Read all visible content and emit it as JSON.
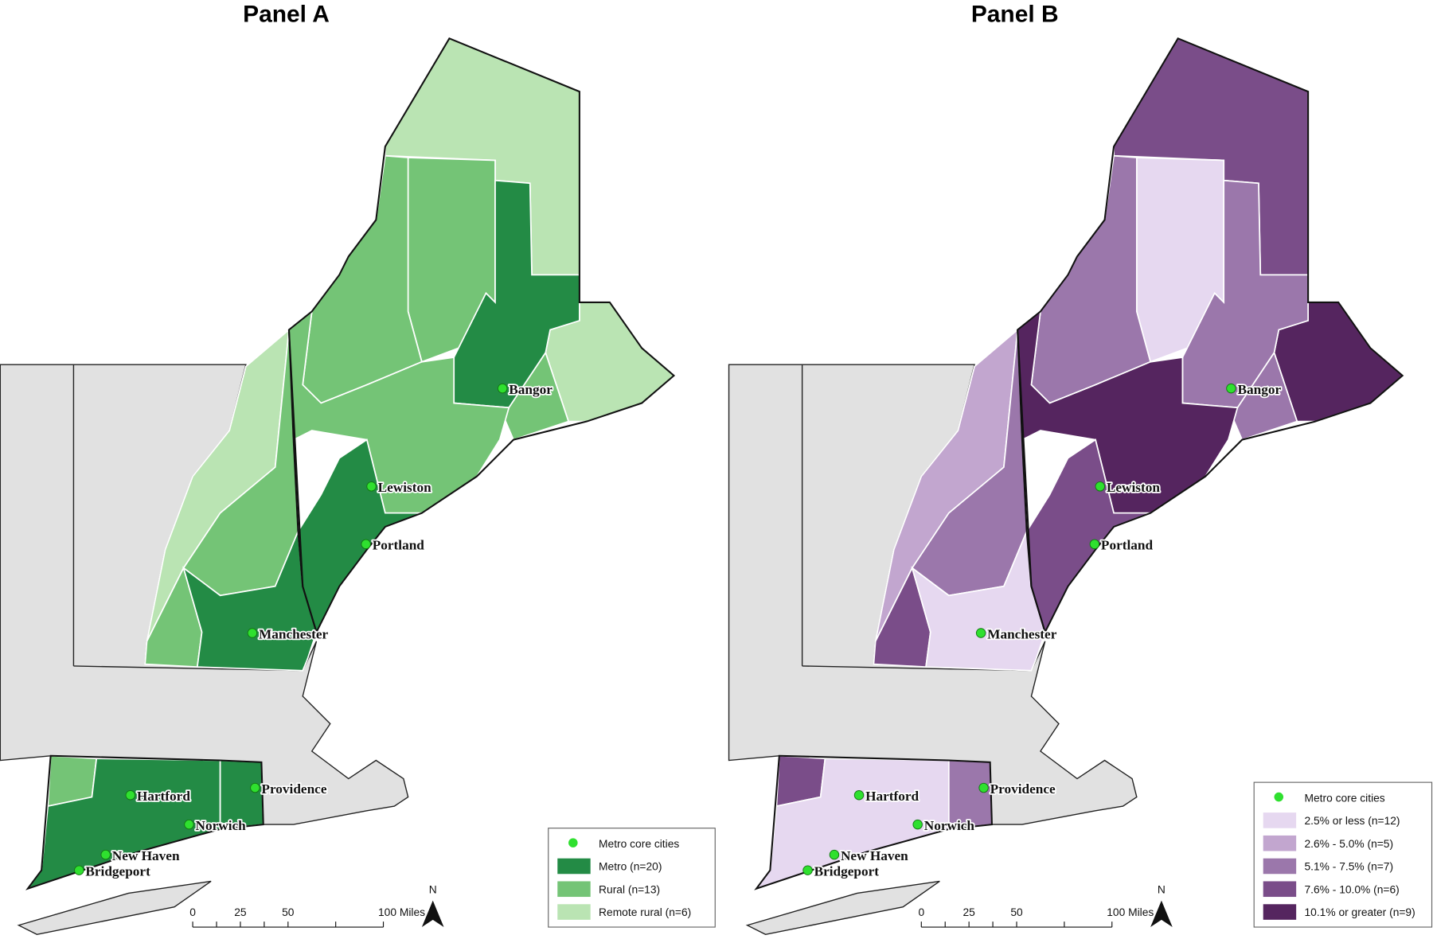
{
  "panels": [
    {
      "title": "Panel A",
      "legend": [
        {
          "label": "Metro core cities",
          "color": "#2fe02f"
        },
        {
          "label": "Metro (n=20)",
          "color": "#238b45"
        },
        {
          "label": "Rural (n=13)",
          "color": "#74c476"
        },
        {
          "label": "Remote rural (n=6)",
          "color": "#bae4b3"
        }
      ]
    },
    {
      "title": "Panel B",
      "legend": [
        {
          "label": "Metro core cities",
          "color": "#2fe02f"
        },
        {
          "label": "2.5% or less (n=12)",
          "color": "#e6d8f0"
        },
        {
          "label": "2.6% - 5.0% (n=5)",
          "color": "#c2a6cf"
        },
        {
          "label": "5.1% - 7.5% (n=7)",
          "color": "#9b77ab"
        },
        {
          "label": "7.6% - 10.0% (n=6)",
          "color": "#7a4d89"
        },
        {
          "label": "10.1% or greater (n=9)",
          "color": "#55255f"
        }
      ]
    }
  ],
  "cities": [
    "Bangor",
    "Lewiston",
    "Portland",
    "Manchester",
    "Hartford",
    "Providence",
    "Norwich",
    "New Haven",
    "Bridgeport"
  ],
  "scale_bar": {
    "labels": [
      "0",
      "25",
      "50",
      "100 Miles"
    ]
  },
  "north_label": "N"
}
